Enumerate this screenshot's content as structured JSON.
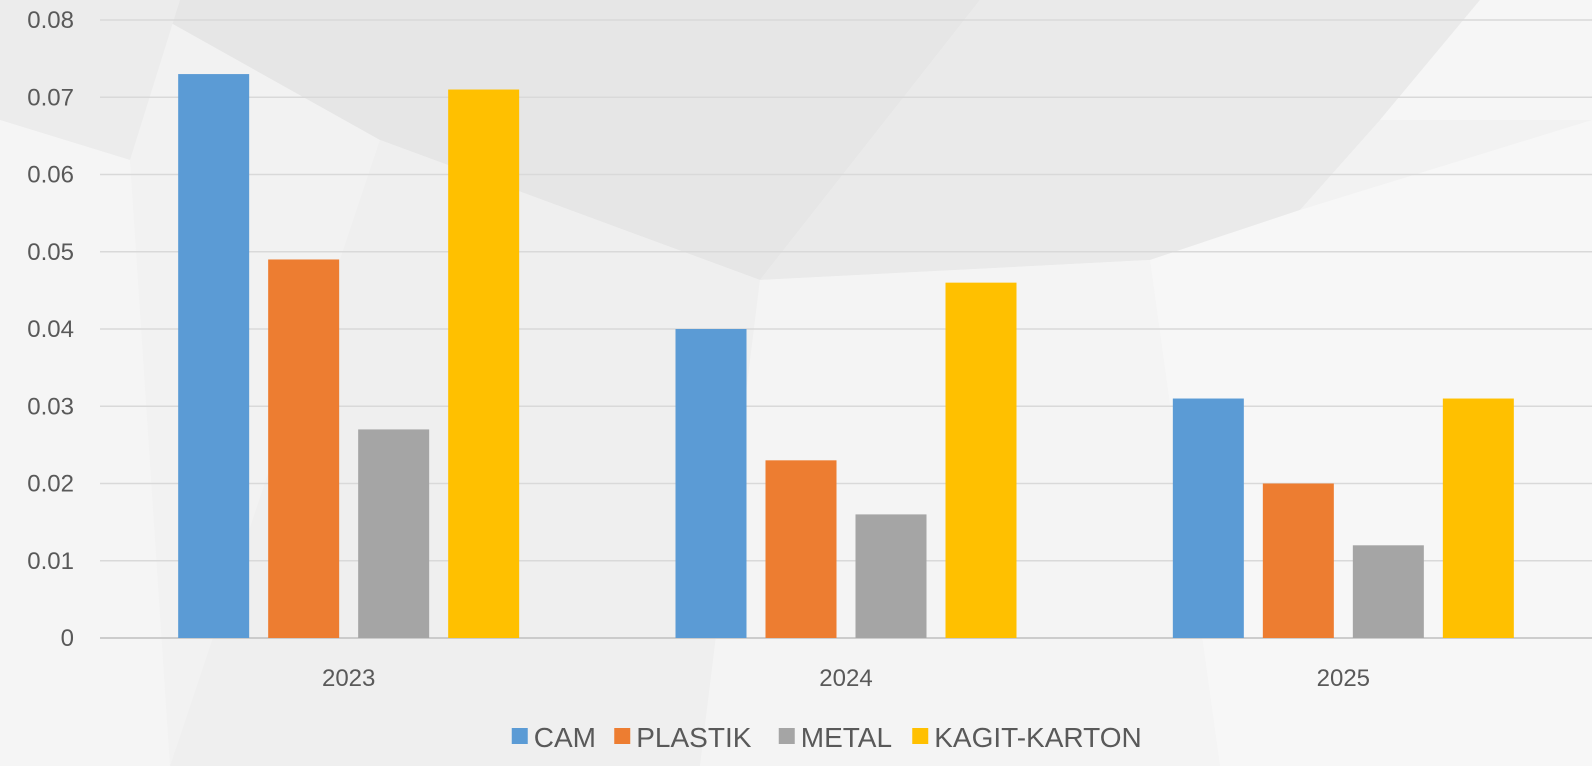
{
  "chart_data": {
    "type": "bar",
    "categories": [
      "2023",
      "2024",
      "2025"
    ],
    "series": [
      {
        "name": "CAM",
        "color": "#5B9BD5",
        "values": [
          0.073,
          0.04,
          0.031
        ]
      },
      {
        "name": "PLASTIK",
        "color": "#ED7D31",
        "values": [
          0.049,
          0.023,
          0.02
        ]
      },
      {
        "name": "METAL",
        "color": "#A5A5A5",
        "values": [
          0.027,
          0.016,
          0.012
        ]
      },
      {
        "name": "KAGIT-KARTON",
        "color": "#FFC000",
        "values": [
          0.071,
          0.046,
          0.031
        ]
      }
    ],
    "title": "",
    "xlabel": "",
    "ylabel": "",
    "ylim": [
      0,
      0.08
    ],
    "yticks": [
      "0",
      "0.01",
      "0.02",
      "0.03",
      "0.04",
      "0.05",
      "0.06",
      "0.07",
      "0.08"
    ],
    "grid": true,
    "legend_position": "bottom"
  }
}
